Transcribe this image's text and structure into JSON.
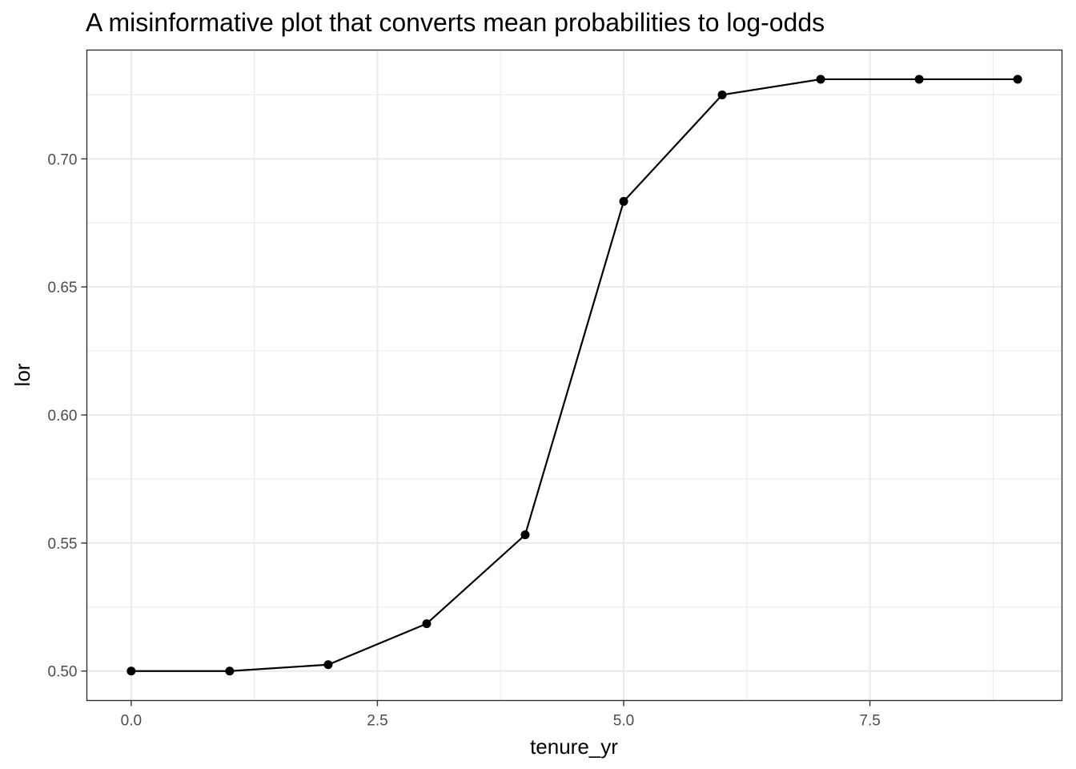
{
  "chart_data": {
    "type": "line",
    "title": "A misinformative plot that converts mean probabilities to log-odds",
    "xlabel": "tenure_yr",
    "ylabel": "lor",
    "xlim": [
      -0.45,
      9.45
    ],
    "ylim": [
      0.4885,
      0.7425
    ],
    "x_ticks": [
      {
        "value": 0.0,
        "label": "0.0"
      },
      {
        "value": 2.5,
        "label": "2.5"
      },
      {
        "value": 5.0,
        "label": "5.0"
      },
      {
        "value": 7.5,
        "label": "7.5"
      }
    ],
    "x_minor_ticks": [
      1.25,
      3.75,
      6.25,
      8.75
    ],
    "y_ticks": [
      {
        "value": 0.5,
        "label": "0.50"
      },
      {
        "value": 0.55,
        "label": "0.55"
      },
      {
        "value": 0.6,
        "label": "0.60"
      },
      {
        "value": 0.65,
        "label": "0.65"
      },
      {
        "value": 0.7,
        "label": "0.70"
      }
    ],
    "y_minor_ticks": [
      0.525,
      0.575,
      0.625,
      0.675,
      0.725
    ],
    "grid": true,
    "legend": "none",
    "colors": {
      "line": "#000000",
      "points": "#000000",
      "grid": "#ebebeb",
      "panel_border": "#333333",
      "background": "#ffffff"
    },
    "series": [
      {
        "x": [
          0,
          1,
          2,
          3,
          4,
          5,
          6,
          7,
          8,
          9
        ],
        "y": [
          0.5,
          0.5,
          0.5025,
          0.5185,
          0.5532,
          0.6834,
          0.725,
          0.7311,
          0.7311,
          0.7311
        ]
      }
    ]
  }
}
